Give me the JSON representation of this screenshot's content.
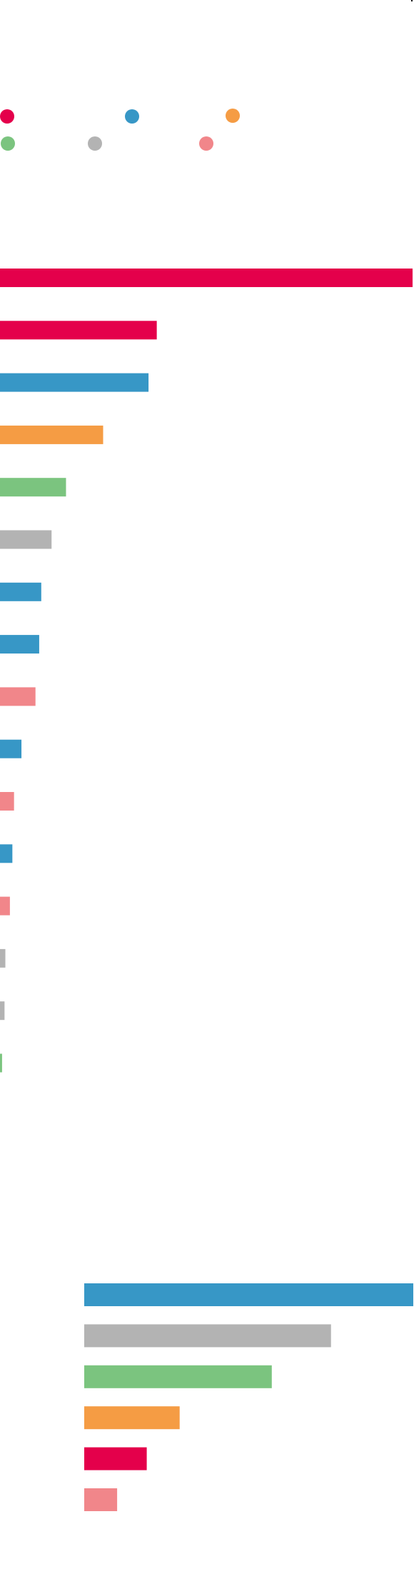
{
  "colors": {
    "red": "#e4004b",
    "blue": "#3797c6",
    "orange": "#f59c44",
    "green": "#7bc47f",
    "gray": "#b3b3b3",
    "pink": "#f1868a"
  },
  "legend": {
    "items": [
      {
        "color_key": "red",
        "label": ""
      },
      {
        "color_key": "blue",
        "label": ""
      },
      {
        "color_key": "orange",
        "label": ""
      },
      {
        "color_key": "green",
        "label": ""
      },
      {
        "color_key": "gray",
        "label": ""
      },
      {
        "color_key": "pink",
        "label": ""
      }
    ]
  },
  "chart_data": [
    {
      "type": "bar",
      "orientation": "horizontal",
      "title": "",
      "xlabel": "",
      "ylabel": "",
      "grid": false,
      "legend_position": "top",
      "categories": [
        "",
        "",
        "",
        "",
        "",
        "",
        "",
        "",
        "",
        "",
        "",
        "",
        "",
        "",
        "",
        ""
      ],
      "values": [
        100,
        38,
        36,
        25,
        16,
        12.5,
        10,
        9.5,
        8.6,
        5.2,
        3.4,
        3,
        2.4,
        1.3,
        1.1,
        0.5
      ],
      "color_keys": [
        "red",
        "red",
        "blue",
        "orange",
        "green",
        "gray",
        "blue",
        "blue",
        "pink",
        "blue",
        "pink",
        "blue",
        "pink",
        "gray",
        "gray",
        "green"
      ],
      "xlim": [
        0,
        100
      ]
    },
    {
      "type": "bar",
      "orientation": "horizontal",
      "title": "",
      "xlabel": "",
      "ylabel": "",
      "grid": false,
      "categories": [
        "",
        "",
        "",
        "",
        "",
        ""
      ],
      "values": [
        100,
        75,
        57,
        29,
        19,
        10
      ],
      "color_keys": [
        "blue",
        "gray",
        "green",
        "orange",
        "red",
        "pink"
      ],
      "xlim": [
        0,
        100
      ]
    }
  ]
}
